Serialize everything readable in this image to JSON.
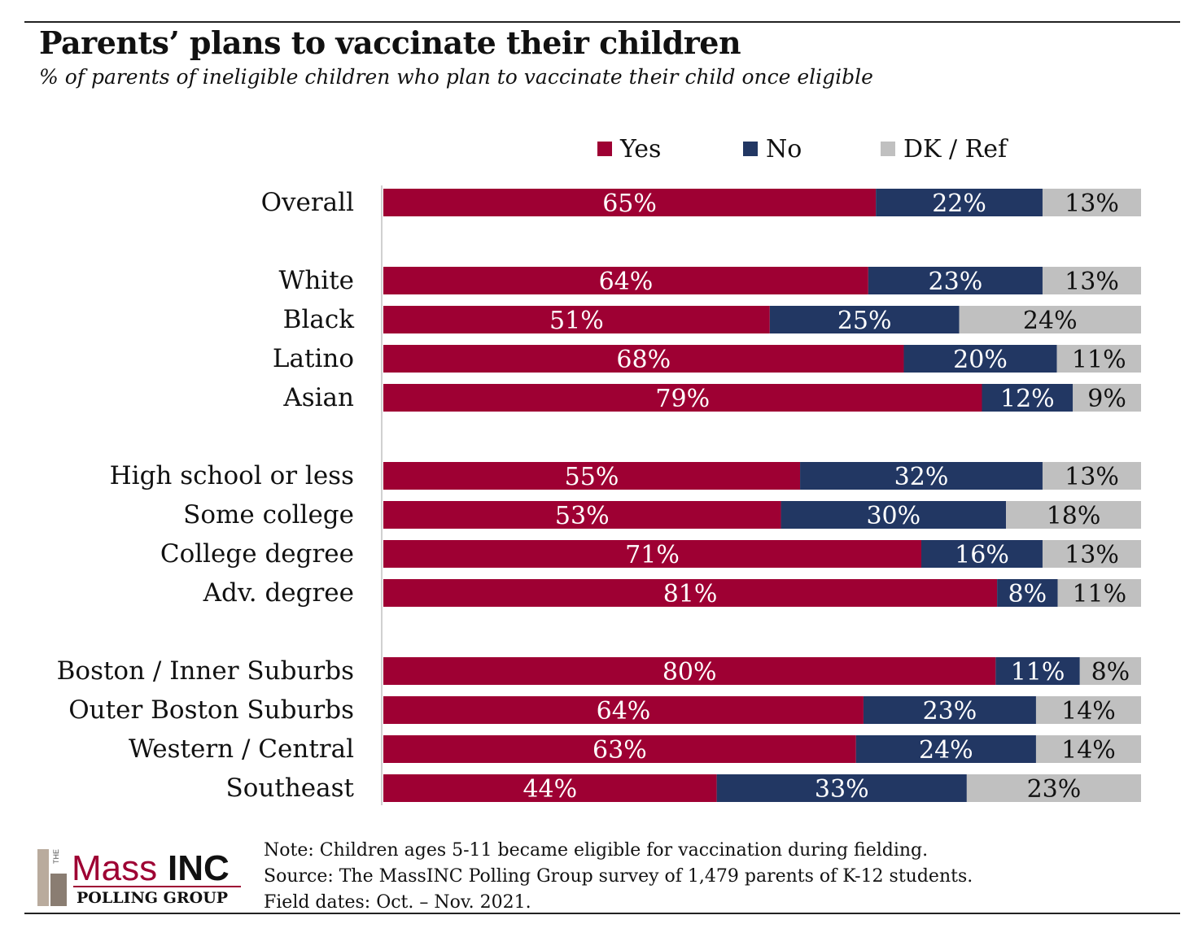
{
  "title": "Parents’ plans to vaccinate their children",
  "subtitle": "% of parents of ineligible children who plan to vaccinate their child once eligible",
  "colors": {
    "yes": "#9e0033",
    "no": "#223763",
    "dk": "#c0c0c0"
  },
  "chart_data": {
    "type": "bar",
    "orientation": "horizontal",
    "stacked": true,
    "legend_position": "top",
    "series": [
      {
        "name": "Yes",
        "color": "#9e0033"
      },
      {
        "name": "No",
        "color": "#223763"
      },
      {
        "name": "DK / Ref",
        "color": "#c0c0c0"
      }
    ],
    "groups": [
      {
        "rows": [
          {
            "label": "Overall",
            "values": [
              65,
              22,
              13
            ]
          }
        ]
      },
      {
        "rows": [
          {
            "label": "White",
            "values": [
              64,
              23,
              13
            ]
          },
          {
            "label": "Black",
            "values": [
              51,
              25,
              24
            ]
          },
          {
            "label": "Latino",
            "values": [
              68,
              20,
              11
            ]
          },
          {
            "label": "Asian",
            "values": [
              79,
              12,
              9
            ]
          }
        ]
      },
      {
        "rows": [
          {
            "label": "High school or less",
            "values": [
              55,
              32,
              13
            ]
          },
          {
            "label": "Some college",
            "values": [
              53,
              30,
              18
            ]
          },
          {
            "label": "College degree",
            "values": [
              71,
              16,
              13
            ]
          },
          {
            "label": "Adv. degree",
            "values": [
              81,
              8,
              11
            ]
          }
        ]
      },
      {
        "rows": [
          {
            "label": "Boston / Inner Suburbs",
            "values": [
              80,
              11,
              8
            ]
          },
          {
            "label": "Outer Boston Suburbs",
            "values": [
              64,
              23,
              14
            ]
          },
          {
            "label": "Western / Central",
            "values": [
              63,
              24,
              14
            ]
          },
          {
            "label": "Southeast",
            "values": [
              44,
              33,
              23
            ]
          }
        ]
      }
    ],
    "value_suffix": "%"
  },
  "logo": {
    "prefix": "THE",
    "name_part1": "Mass",
    "name_part2": "INC",
    "tagline": "POLLING GROUP"
  },
  "notes": {
    "note": "Note: Children ages 5-11 became eligible for vaccination during fielding.",
    "source": "Source: The MassINC Polling Group survey of 1,479 parents of K-12 students.",
    "dates": "Field dates: Oct. – Nov. 2021."
  }
}
